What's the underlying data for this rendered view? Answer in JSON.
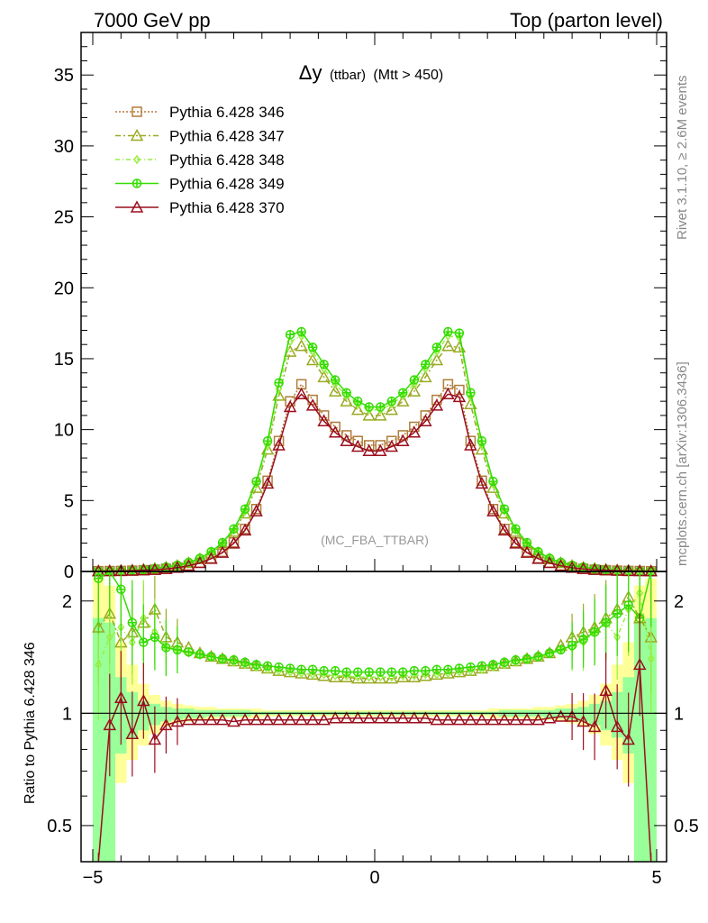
{
  "header": {
    "left": "7000 GeV pp",
    "right": "Top (parton level)"
  },
  "side": {
    "rivet": "Rivet 3.1.10, ≥ 2.6M events",
    "mcplots": "mcplots.cern.ch [arXiv:1306.3436]"
  },
  "chart_data": {
    "type": "line",
    "title_main": "Δy",
    "title_small": "(ttbar)",
    "title_cut": "(Mtt > 450)",
    "watermark": "(MC_FBA_TTBAR)",
    "xlim": [
      -5,
      5
    ],
    "xticks": [
      "−5",
      "0",
      "5"
    ],
    "main_ylim": [
      0,
      38
    ],
    "main_yticks": [
      "0",
      "5",
      "10",
      "15",
      "20",
      "25",
      "30",
      "35"
    ],
    "ratio_ylabel": "Ratio to Pythia 6.428 346",
    "ratio_ylim": [
      0.4,
      2.4
    ],
    "ratio_yticks": [
      "0.5",
      "1",
      "2"
    ],
    "x": [
      -4.9,
      -4.7,
      -4.5,
      -4.3,
      -4.1,
      -3.9,
      -3.7,
      -3.5,
      -3.3,
      -3.1,
      -2.9,
      -2.7,
      -2.5,
      -2.3,
      -2.1,
      -1.9,
      -1.7,
      -1.5,
      -1.3,
      -1.1,
      -0.9,
      -0.7,
      -0.5,
      -0.3,
      -0.1,
      0.1,
      0.3,
      0.5,
      0.7,
      0.9,
      1.1,
      1.3,
      1.5,
      1.7,
      1.9,
      2.1,
      2.3,
      2.5,
      2.7,
      2.9,
      3.1,
      3.3,
      3.5,
      3.7,
      3.9,
      4.1,
      4.3,
      4.5,
      4.7,
      4.9
    ],
    "series": [
      {
        "name": "Pythia 6.428 346",
        "color": "#b07d3a",
        "marker": "square",
        "dash": "2,2",
        "values": [
          0.02,
          0.03,
          0.04,
          0.06,
          0.09,
          0.13,
          0.19,
          0.28,
          0.42,
          0.62,
          0.93,
          1.38,
          2.05,
          3.0,
          4.4,
          6.4,
          9.2,
          12.0,
          13.2,
          12.1,
          11.0,
          10.2,
          9.6,
          9.2,
          8.9,
          8.9,
          9.2,
          9.6,
          10.2,
          11.0,
          12.1,
          13.2,
          12.8,
          9.2,
          6.4,
          4.4,
          3.0,
          2.05,
          1.38,
          0.93,
          0.62,
          0.42,
          0.28,
          0.19,
          0.13,
          0.09,
          0.06,
          0.04,
          0.03,
          0.02
        ],
        "ratio": [
          1.0,
          1.0,
          1.0,
          1.0,
          1.0,
          1.0,
          1.0,
          1.0,
          1.0,
          1.0,
          1.0,
          1.0,
          1.0,
          1.0,
          1.0,
          1.0,
          1.0,
          1.0,
          1.0,
          1.0,
          1.0,
          1.0,
          1.0,
          1.0,
          1.0,
          1.0,
          1.0,
          1.0,
          1.0,
          1.0,
          1.0,
          1.0,
          1.0,
          1.0,
          1.0,
          1.0,
          1.0,
          1.0,
          1.0,
          1.0,
          1.0,
          1.0,
          1.0,
          1.0,
          1.0,
          1.0,
          1.0,
          1.0,
          1.0,
          1.0
        ]
      },
      {
        "name": "Pythia 6.428 347",
        "color": "#9aaa22",
        "marker": "triangle",
        "dash": "6,3,2,3",
        "values": [
          0.03,
          0.04,
          0.06,
          0.09,
          0.14,
          0.2,
          0.29,
          0.41,
          0.6,
          0.87,
          1.3,
          1.9,
          2.8,
          4.1,
          5.9,
          8.6,
          12.4,
          15.5,
          15.9,
          14.9,
          13.7,
          12.7,
          12.0,
          11.4,
          11.0,
          11.0,
          11.4,
          12.0,
          12.7,
          13.7,
          14.9,
          15.9,
          15.8,
          11.8,
          8.6,
          5.9,
          4.1,
          2.8,
          1.9,
          1.3,
          0.87,
          0.6,
          0.41,
          0.29,
          0.2,
          0.14,
          0.09,
          0.06,
          0.04,
          0.03
        ],
        "ratio": [
          1.7,
          1.85,
          1.55,
          1.65,
          1.75,
          1.9,
          1.6,
          1.55,
          1.5,
          1.45,
          1.42,
          1.4,
          1.38,
          1.36,
          1.34,
          1.32,
          1.3,
          1.29,
          1.28,
          1.27,
          1.26,
          1.25,
          1.25,
          1.24,
          1.24,
          1.24,
          1.24,
          1.25,
          1.25,
          1.26,
          1.27,
          1.28,
          1.29,
          1.3,
          1.32,
          1.34,
          1.36,
          1.38,
          1.4,
          1.42,
          1.45,
          1.52,
          1.6,
          1.65,
          1.7,
          1.8,
          1.9,
          2.05,
          1.8,
          1.6
        ]
      },
      {
        "name": "Pythia 6.428 348",
        "color": "#99ee44",
        "marker": "diamond",
        "dash": "5,3,1,3",
        "values": [
          0.03,
          0.04,
          0.06,
          0.09,
          0.14,
          0.2,
          0.3,
          0.43,
          0.62,
          0.9,
          1.35,
          1.97,
          2.9,
          4.25,
          6.15,
          8.9,
          12.9,
          16.2,
          16.6,
          15.5,
          14.3,
          13.2,
          12.4,
          11.8,
          11.4,
          11.4,
          11.8,
          12.4,
          13.2,
          14.3,
          15.5,
          16.6,
          16.5,
          12.3,
          8.9,
          6.15,
          4.25,
          2.9,
          1.97,
          1.35,
          0.9,
          0.62,
          0.43,
          0.3,
          0.2,
          0.14,
          0.09,
          0.06,
          0.04,
          0.03
        ],
        "ratio": [
          1.35,
          1.6,
          1.7,
          1.55,
          1.8,
          1.65,
          1.5,
          1.48,
          1.45,
          1.43,
          1.41,
          1.39,
          1.37,
          1.35,
          1.33,
          1.31,
          1.3,
          1.29,
          1.28,
          1.27,
          1.27,
          1.26,
          1.26,
          1.25,
          1.25,
          1.25,
          1.25,
          1.26,
          1.26,
          1.27,
          1.27,
          1.28,
          1.29,
          1.3,
          1.31,
          1.33,
          1.35,
          1.37,
          1.39,
          1.41,
          1.44,
          1.48,
          1.5,
          1.55,
          1.65,
          1.75,
          1.6,
          1.9,
          2.1,
          1.4
        ]
      },
      {
        "name": "Pythia 6.428 349",
        "color": "#33dd00",
        "marker": "circle-plus",
        "dash": "",
        "values": [
          0.03,
          0.04,
          0.06,
          0.09,
          0.14,
          0.21,
          0.31,
          0.44,
          0.64,
          0.93,
          1.39,
          2.03,
          3.0,
          4.4,
          6.35,
          9.2,
          13.3,
          16.7,
          16.9,
          15.8,
          14.6,
          13.5,
          12.6,
          12.0,
          11.6,
          11.6,
          12.0,
          12.6,
          13.5,
          14.6,
          15.8,
          16.9,
          16.8,
          12.6,
          9.2,
          6.35,
          4.4,
          3.0,
          2.03,
          1.39,
          0.93,
          0.64,
          0.44,
          0.31,
          0.21,
          0.14,
          0.09,
          0.06,
          0.04,
          0.03
        ],
        "ratio": [
          2.3,
          2.5,
          2.15,
          1.75,
          1.55,
          1.6,
          1.5,
          1.48,
          1.46,
          1.44,
          1.42,
          1.4,
          1.39,
          1.37,
          1.35,
          1.34,
          1.33,
          1.32,
          1.31,
          1.31,
          1.3,
          1.3,
          1.29,
          1.29,
          1.29,
          1.29,
          1.29,
          1.29,
          1.3,
          1.3,
          1.31,
          1.31,
          1.32,
          1.33,
          1.34,
          1.35,
          1.37,
          1.39,
          1.4,
          1.42,
          1.45,
          1.48,
          1.52,
          1.58,
          1.65,
          1.75,
          1.85,
          1.95,
          1.8,
          2.4
        ]
      },
      {
        "name": "Pythia 6.428 370",
        "color": "#9b0e1e",
        "marker": "triangle",
        "dash": "",
        "values": [
          0.02,
          0.03,
          0.04,
          0.06,
          0.09,
          0.12,
          0.18,
          0.27,
          0.4,
          0.6,
          0.9,
          1.33,
          1.98,
          2.9,
          4.25,
          6.2,
          8.9,
          11.6,
          12.5,
          11.7,
          10.6,
          9.8,
          9.2,
          8.8,
          8.5,
          8.5,
          8.8,
          9.2,
          9.8,
          10.6,
          11.7,
          12.5,
          12.3,
          8.9,
          6.2,
          4.25,
          2.9,
          1.98,
          1.33,
          0.9,
          0.6,
          0.4,
          0.27,
          0.18,
          0.12,
          0.09,
          0.06,
          0.04,
          0.03,
          0.02
        ],
        "ratio": [
          0.3,
          0.93,
          1.1,
          0.88,
          1.08,
          0.85,
          0.93,
          0.95,
          0.96,
          0.96,
          0.96,
          0.96,
          0.95,
          0.96,
          0.96,
          0.96,
          0.96,
          0.96,
          0.96,
          0.96,
          0.96,
          0.97,
          0.97,
          0.97,
          0.97,
          0.97,
          0.97,
          0.97,
          0.97,
          0.97,
          0.96,
          0.96,
          0.96,
          0.96,
          0.96,
          0.96,
          0.96,
          0.96,
          0.96,
          0.96,
          0.97,
          0.98,
          0.98,
          0.95,
          0.92,
          1.15,
          0.92,
          0.85,
          1.35,
          0.3
        ]
      }
    ],
    "band_yellow": [
      [
        0.3,
        2.3
      ],
      [
        0.4,
        2.2
      ],
      [
        0.65,
        1.55
      ],
      [
        0.75,
        1.35
      ],
      [
        0.82,
        1.2
      ],
      [
        0.88,
        1.12
      ],
      [
        0.92,
        1.08
      ],
      [
        0.94,
        1.06
      ],
      [
        0.95,
        1.05
      ],
      [
        0.96,
        1.04
      ],
      [
        0.96,
        1.04
      ],
      [
        0.97,
        1.03
      ],
      [
        0.97,
        1.03
      ],
      [
        0.97,
        1.03
      ],
      [
        0.97,
        1.03
      ],
      [
        0.98,
        1.02
      ],
      [
        0.98,
        1.02
      ],
      [
        0.98,
        1.02
      ],
      [
        0.98,
        1.02
      ],
      [
        0.98,
        1.02
      ],
      [
        0.98,
        1.02
      ],
      [
        0.98,
        1.02
      ],
      [
        0.98,
        1.02
      ],
      [
        0.98,
        1.02
      ],
      [
        0.98,
        1.02
      ],
      [
        0.98,
        1.02
      ],
      [
        0.98,
        1.02
      ],
      [
        0.98,
        1.02
      ],
      [
        0.98,
        1.02
      ],
      [
        0.98,
        1.02
      ],
      [
        0.98,
        1.02
      ],
      [
        0.98,
        1.02
      ],
      [
        0.98,
        1.02
      ],
      [
        0.98,
        1.02
      ],
      [
        0.98,
        1.02
      ],
      [
        0.97,
        1.03
      ],
      [
        0.97,
        1.03
      ],
      [
        0.97,
        1.03
      ],
      [
        0.97,
        1.03
      ],
      [
        0.96,
        1.04
      ],
      [
        0.96,
        1.04
      ],
      [
        0.95,
        1.05
      ],
      [
        0.94,
        1.06
      ],
      [
        0.92,
        1.08
      ],
      [
        0.88,
        1.12
      ],
      [
        0.82,
        1.2
      ],
      [
        0.75,
        1.35
      ],
      [
        0.65,
        1.55
      ],
      [
        0.4,
        2.2
      ],
      [
        0.3,
        2.3
      ]
    ],
    "band_green": [
      [
        0.3,
        1.8
      ],
      [
        0.35,
        1.75
      ],
      [
        0.78,
        1.25
      ],
      [
        0.86,
        1.14
      ],
      [
        0.9,
        1.08
      ],
      [
        0.93,
        1.06
      ],
      [
        0.95,
        1.04
      ],
      [
        0.96,
        1.03
      ],
      [
        0.97,
        1.03
      ],
      [
        0.97,
        1.02
      ],
      [
        0.98,
        1.02
      ],
      [
        0.98,
        1.02
      ],
      [
        0.98,
        1.02
      ],
      [
        0.98,
        1.02
      ],
      [
        0.99,
        1.01
      ],
      [
        0.99,
        1.01
      ],
      [
        0.99,
        1.01
      ],
      [
        0.99,
        1.01
      ],
      [
        0.99,
        1.01
      ],
      [
        0.99,
        1.01
      ],
      [
        0.99,
        1.01
      ],
      [
        0.99,
        1.01
      ],
      [
        0.99,
        1.01
      ],
      [
        0.99,
        1.01
      ],
      [
        0.99,
        1.01
      ],
      [
        0.99,
        1.01
      ],
      [
        0.99,
        1.01
      ],
      [
        0.99,
        1.01
      ],
      [
        0.99,
        1.01
      ],
      [
        0.99,
        1.01
      ],
      [
        0.99,
        1.01
      ],
      [
        0.99,
        1.01
      ],
      [
        0.99,
        1.01
      ],
      [
        0.99,
        1.01
      ],
      [
        0.99,
        1.01
      ],
      [
        0.99,
        1.01
      ],
      [
        0.98,
        1.02
      ],
      [
        0.98,
        1.02
      ],
      [
        0.98,
        1.02
      ],
      [
        0.98,
        1.02
      ],
      [
        0.97,
        1.02
      ],
      [
        0.97,
        1.03
      ],
      [
        0.96,
        1.03
      ],
      [
        0.95,
        1.04
      ],
      [
        0.93,
        1.06
      ],
      [
        0.9,
        1.08
      ],
      [
        0.86,
        1.14
      ],
      [
        0.78,
        1.25
      ],
      [
        0.35,
        1.75
      ],
      [
        0.3,
        1.8
      ]
    ]
  }
}
